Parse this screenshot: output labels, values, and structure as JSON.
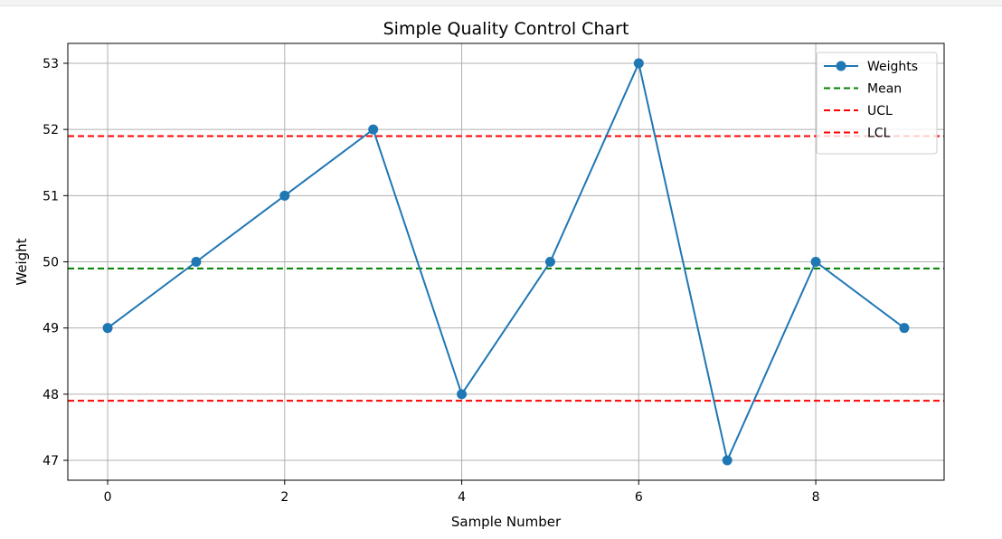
{
  "chart_data": {
    "type": "line",
    "title": "Simple Quality Control Chart",
    "xlabel": "Sample Number",
    "ylabel": "Weight",
    "xlim": [
      -0.45,
      9.45
    ],
    "ylim": [
      46.7,
      53.3
    ],
    "xticks": [
      "0",
      "2",
      "4",
      "6",
      "8"
    ],
    "yticks": [
      "47",
      "48",
      "49",
      "50",
      "51",
      "52",
      "53"
    ],
    "grid": true,
    "legend_position": "top-right",
    "series": [
      {
        "name": "Weights",
        "color": "#1f77b4",
        "x": [
          0,
          1,
          2,
          3,
          4,
          5,
          6,
          7,
          8,
          9
        ],
        "y": [
          49,
          50,
          51,
          52,
          48,
          50,
          53,
          47,
          50,
          49
        ]
      }
    ],
    "reference_lines": [
      {
        "name": "Mean",
        "y": 49.9,
        "color": "#008000",
        "style": "dashed"
      },
      {
        "name": "UCL",
        "y": 51.9,
        "color": "#ff0000",
        "style": "dashed"
      },
      {
        "name": "LCL",
        "y": 47.9,
        "color": "#ff0000",
        "style": "dashed"
      }
    ]
  }
}
